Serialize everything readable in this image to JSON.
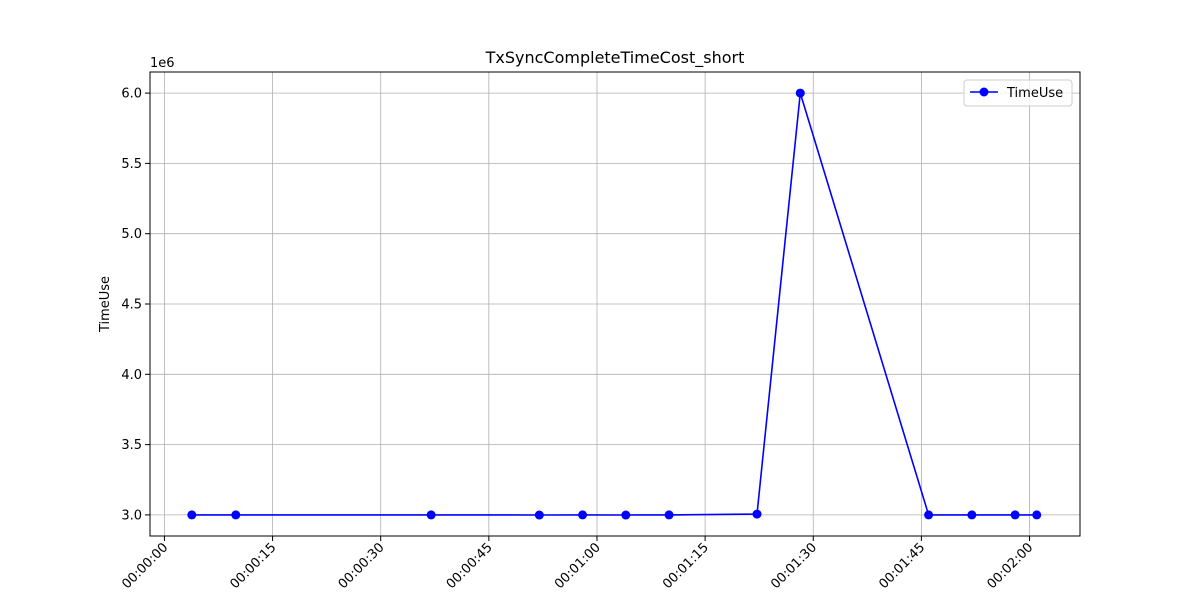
{
  "chart_data": {
    "type": "line",
    "title": "TxSyncCompleteTimeCost_short",
    "xlabel": "",
    "ylabel": "TimeUse",
    "y_offset_label": "1e6",
    "x_ticks": [
      "00:00:00",
      "00:00:15",
      "00:00:30",
      "00:00:45",
      "00:01:00",
      "00:01:15",
      "00:01:30",
      "00:01:45",
      "00:02:00"
    ],
    "x_tick_seconds": [
      0,
      15,
      30,
      45,
      60,
      75,
      90,
      105,
      120
    ],
    "y_ticks": [
      "3.0",
      "3.5",
      "4.0",
      "4.5",
      "5.0",
      "5.5",
      "6.0"
    ],
    "y_tick_values": [
      3.0,
      3.5,
      4.0,
      4.5,
      5.0,
      5.5,
      6.0
    ],
    "xlim": [
      -2,
      127
    ],
    "ylim": [
      2.85,
      6.15
    ],
    "grid": true,
    "legend_position": "top-right",
    "series": [
      {
        "name": "TimeUse",
        "color": "#0000ff",
        "marker": "circle",
        "x": [
          "00:00:04",
          "00:00:10",
          "00:00:37",
          "00:00:52",
          "00:00:58",
          "00:01:04",
          "00:01:10",
          "00:01:22",
          "00:01:28",
          "00:01:46",
          "00:01:52",
          "00:01:58",
          "00:02:01"
        ],
        "x_seconds": [
          3.8,
          9.9,
          37.0,
          52.0,
          58.0,
          64.0,
          70.0,
          82.2,
          88.2,
          106.0,
          112.0,
          118.0,
          121.0
        ],
        "y": [
          3.0,
          3.0,
          3.0,
          2.999,
          3.0,
          2.999,
          3.0,
          3.006,
          6.0,
          3.0,
          3.0,
          3.0,
          3.0
        ]
      }
    ]
  }
}
